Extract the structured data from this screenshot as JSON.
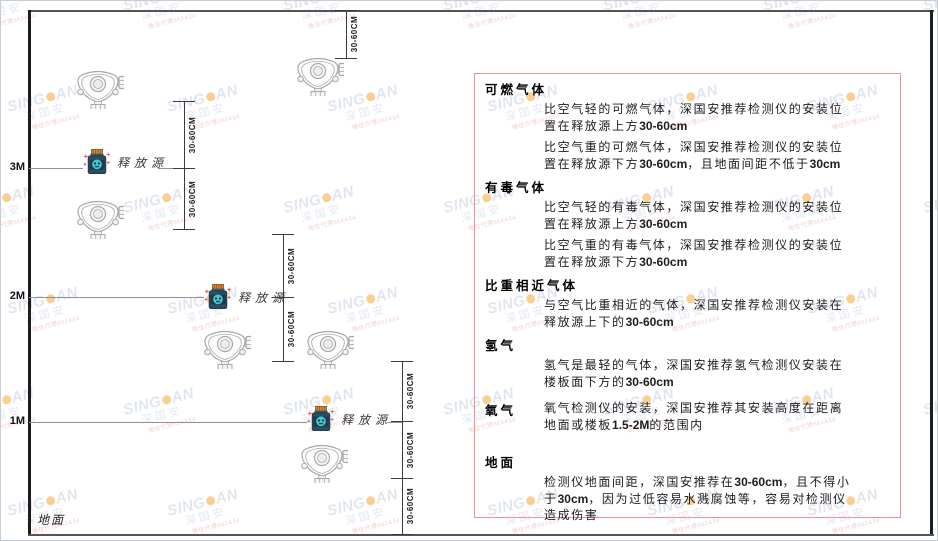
{
  "diagram": {
    "release_source_label": "释放源",
    "dim_label": "30-60CM",
    "ground_label": "地面",
    "height_markers": [
      "3M",
      "2M",
      "1M"
    ]
  },
  "watermark": {
    "brand_left": "SING",
    "brand_right": "AN",
    "cn": "深国安",
    "sub": "微信代理661434"
  },
  "panel": {
    "sections": [
      {
        "title": "可燃气体",
        "inline": false,
        "paragraphs": [
          "比空气轻的可燃气体，深国安推荐检测仪的安装位置在释放源上方30-60cm",
          "比空气重的可燃气体，深国安推荐检测仪的安装位置在释放源下方30-60cm，且地面间距不低于30cm"
        ]
      },
      {
        "title": "有毒气体",
        "inline": false,
        "paragraphs": [
          "比空气轻的有毒气体，深国安推荐检测仪的安装位置在释放源上方30-60cm",
          "比空气重的有毒气体，深国安推荐检测仪的安装位置在释放源下方30-60cm"
        ]
      },
      {
        "title": "比重相近气体",
        "inline": false,
        "paragraphs": [
          "与空气比重相近的气体，深国安推荐检测仪安装在释放源上下的30-60cm"
        ]
      },
      {
        "title": "氢气",
        "inline": false,
        "paragraphs": [
          "氢气是最轻的气体，深国安推荐氢气检测仪安装在楼板面下方的30-60cm"
        ]
      },
      {
        "title": "氧气",
        "inline": true,
        "paragraphs": [
          "氧气检测仪的安装，深国安推荐其安装高度在距离地面或楼板1.5-2M的范围内"
        ]
      },
      {
        "title": "地面",
        "inline": false,
        "ground": true,
        "paragraphs": [
          "检测仪地面间距，深国安推荐在30-60cm，且不得小于30cm，因为过低容易水溅腐蚀等，容易对检测仪造成伤害"
        ]
      }
    ]
  }
}
